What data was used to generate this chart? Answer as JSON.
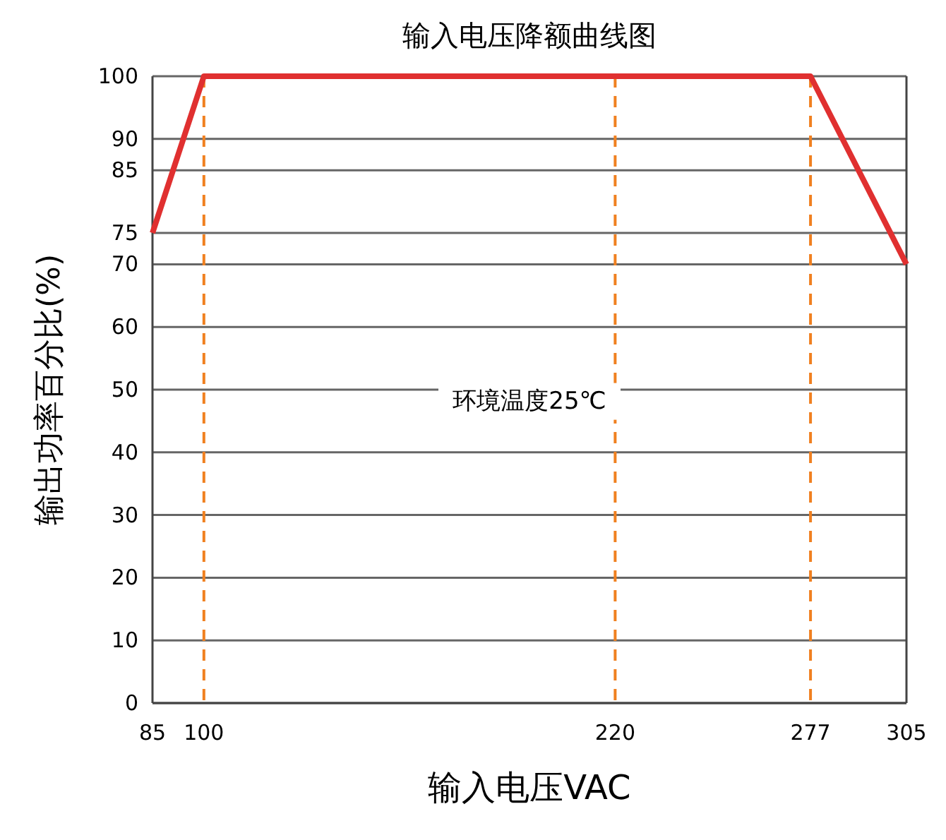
{
  "chart_data": {
    "type": "line",
    "title": "输入电压降额曲线图",
    "xlabel": "输入电压VAC",
    "ylabel": "输出功率百分比(%)",
    "x": [
      85,
      100,
      277,
      305
    ],
    "series": [
      {
        "color": "#e03030",
        "values": [
          75,
          100,
          100,
          70
        ]
      }
    ],
    "xlim": [
      85,
      305
    ],
    "xticks": [
      85,
      100,
      220,
      277,
      305
    ],
    "ylim": [
      0,
      100
    ],
    "yticks": [
      0,
      10,
      20,
      30,
      40,
      50,
      60,
      70,
      75,
      85,
      90,
      100
    ],
    "grid": "y",
    "line_style": "solid",
    "marker": "none",
    "ref_lines": [
      {
        "axis": "x",
        "value": 100,
        "color": "#f08020",
        "line_style": "dashed"
      },
      {
        "axis": "x",
        "value": 220,
        "color": "#f08020",
        "line_style": "dashed"
      },
      {
        "axis": "x",
        "value": 277,
        "color": "#f08020",
        "line_style": "dashed"
      }
    ],
    "annotations": [
      "环境温度25℃"
    ]
  }
}
